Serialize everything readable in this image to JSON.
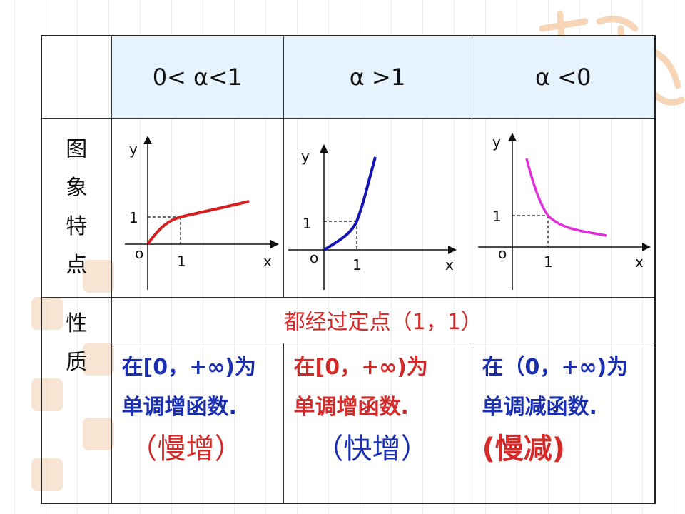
{
  "header": {
    "col1": "0< α<1",
    "col2": "α >1",
    "col3": "α <0"
  },
  "side": {
    "graph_label": [
      "图",
      "象",
      "特",
      "点"
    ],
    "prop_label": [
      "性",
      "质"
    ]
  },
  "common_property": "都经过定点（1，1）",
  "graphs": [
    {
      "curve_color": "#d42020",
      "y_label": "y",
      "x_label": "x",
      "one_y": "1",
      "one_x": "1",
      "origin": "o"
    },
    {
      "curve_color": "#1414b4",
      "y_label": "y",
      "x_label": "x",
      "one_y": "1",
      "one_x": "1",
      "origin": "o"
    },
    {
      "curve_color": "#e030d8",
      "y_label": "y",
      "x_label": "x",
      "one_y": "1",
      "one_x": "1",
      "origin": "o"
    }
  ],
  "properties": [
    {
      "line1": "在[0，+∞)为",
      "line2": "单调增函数.",
      "note": "（慢增）"
    },
    {
      "line1": "在[0，+∞)为",
      "line2": "单调增函数.",
      "note": "（快增）"
    },
    {
      "line1": "在（0，+∞)为",
      "line2": "单调减函数.",
      "note": "(慢减)"
    }
  ],
  "colors": {
    "header_bg": "#e6f2fc",
    "blue_text": "#1a2fb0",
    "red_text": "#d52a2a"
  }
}
